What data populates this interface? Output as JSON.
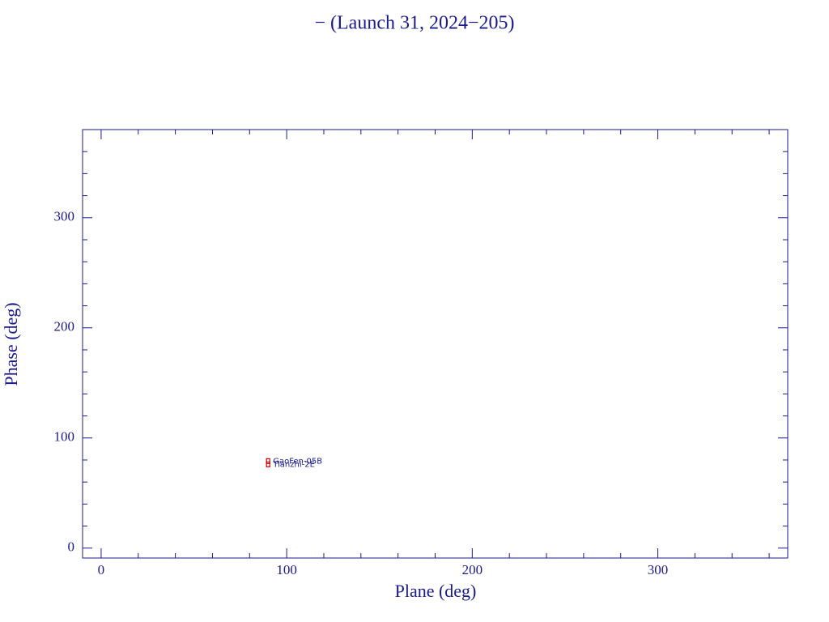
{
  "chart_data": {
    "type": "scatter",
    "title": "− (Launch 31, 2024−205)",
    "x_label": "Plane (deg)",
    "y_label": "Phase (deg)",
    "x": [
      90,
      90
    ],
    "values": [
      79,
      76
    ],
    "point_labels": [
      "GaoFen-05B",
      "Tianzhi-2E"
    ],
    "color": "#cc0000",
    "xlim": [
      -10,
      370
    ],
    "ylim": [
      -9,
      380
    ],
    "xticks": [
      0,
      100,
      200,
      300
    ],
    "yticks": [
      0,
      100,
      200,
      300
    ],
    "xminor_ticks": [
      20,
      40,
      60,
      80,
      120,
      140,
      160,
      180,
      220,
      240,
      260,
      280,
      320,
      340,
      360
    ],
    "yminor_ticks": [
      20,
      40,
      60,
      80,
      120,
      140,
      160,
      180,
      220,
      240,
      260,
      280,
      320,
      340,
      360
    ]
  }
}
